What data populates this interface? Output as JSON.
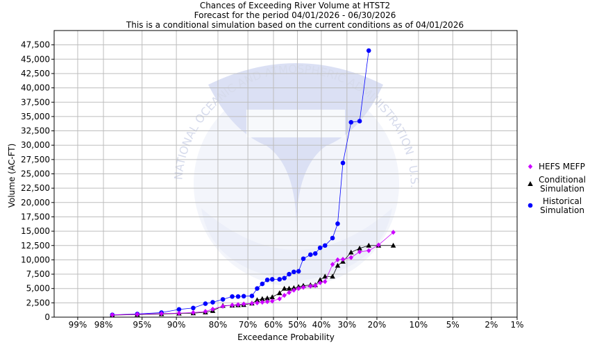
{
  "chart_data": {
    "type": "line",
    "title_lines": [
      "Chances of Exceeding River Volume at HTST2",
      "Forecast for the period 04/01/2026 - 06/30/2026",
      "This is a conditional simulation based on the current conditions as of 04/01/2026"
    ],
    "xlabel": "Exceedance Probability",
    "ylabel": "Volume (AC-FT)",
    "x_axis_scale": "normal-probability",
    "x_range": [
      99.5,
      1
    ],
    "ylim": [
      0,
      50000
    ],
    "x_ticks": [
      {
        "p": 99,
        "label": "99%"
      },
      {
        "p": 98,
        "label": "98%"
      },
      {
        "p": 95,
        "label": "95%"
      },
      {
        "p": 90,
        "label": "90%"
      },
      {
        "p": 80,
        "label": "80%"
      },
      {
        "p": 70,
        "label": "70%"
      },
      {
        "p": 60,
        "label": "60%"
      },
      {
        "p": 50,
        "label": "50%"
      },
      {
        "p": 40,
        "label": "40%"
      },
      {
        "p": 30,
        "label": "30%"
      },
      {
        "p": 20,
        "label": "20%"
      },
      {
        "p": 10,
        "label": "10%"
      },
      {
        "p": 5,
        "label": "5%"
      },
      {
        "p": 2,
        "label": "2%"
      },
      {
        "p": 1,
        "label": "1%"
      }
    ],
    "y_ticks": [
      {
        "v": 0,
        "label": "0"
      },
      {
        "v": 2500,
        "label": "2,500"
      },
      {
        "v": 5000,
        "label": "5,000"
      },
      {
        "v": 7500,
        "label": "7,500"
      },
      {
        "v": 10000,
        "label": "10,000"
      },
      {
        "v": 12500,
        "label": "12,500"
      },
      {
        "v": 15000,
        "label": "15,000"
      },
      {
        "v": 17500,
        "label": "17,500"
      },
      {
        "v": 20000,
        "label": "20,000"
      },
      {
        "v": 22500,
        "label": "22,500"
      },
      {
        "v": 25000,
        "label": "25,000"
      },
      {
        "v": 27500,
        "label": "27,500"
      },
      {
        "v": 30000,
        "label": "30,000"
      },
      {
        "v": 32500,
        "label": "32,500"
      },
      {
        "v": 35000,
        "label": "35,000"
      },
      {
        "v": 37500,
        "label": "37,500"
      },
      {
        "v": 40000,
        "label": "40,000"
      },
      {
        "v": 42500,
        "label": "42,500"
      },
      {
        "v": 45000,
        "label": "45,000"
      },
      {
        "v": 47500,
        "label": "47,500"
      }
    ],
    "grid": true,
    "legend_position": "right",
    "series": [
      {
        "name": "HEFS MEFP",
        "legend_lines": [
          "HEFS MEFP"
        ],
        "color": "#cc00ff",
        "marker": "diamond",
        "points": [
          [
            97.5,
            400
          ],
          [
            95.5,
            500
          ],
          [
            92.5,
            620
          ],
          [
            89.5,
            700
          ],
          [
            86.5,
            800
          ],
          [
            83.5,
            1000
          ],
          [
            81.5,
            1400
          ],
          [
            78.5,
            1900
          ],
          [
            75.5,
            2100
          ],
          [
            73.5,
            2200
          ],
          [
            71.5,
            2300
          ],
          [
            68.5,
            2400
          ],
          [
            66.5,
            2500
          ],
          [
            64.5,
            2600
          ],
          [
            62.5,
            2700
          ],
          [
            60.5,
            2800
          ],
          [
            57.5,
            3200
          ],
          [
            55.5,
            3800
          ],
          [
            53.5,
            4300
          ],
          [
            51.5,
            4700
          ],
          [
            49.5,
            5000
          ],
          [
            47.5,
            5200
          ],
          [
            44.5,
            5400
          ],
          [
            42.5,
            5500
          ],
          [
            40.5,
            6000
          ],
          [
            38.5,
            6200
          ],
          [
            35.5,
            9200
          ],
          [
            33.5,
            10000
          ],
          [
            31.5,
            10100
          ],
          [
            28.5,
            10400
          ],
          [
            25.5,
            11400
          ],
          [
            22.5,
            11600
          ],
          [
            19.5,
            12600
          ],
          [
            15.5,
            14800
          ]
        ]
      },
      {
        "name": "Conditional Simulation",
        "legend_lines": [
          "Conditional",
          "Simulation"
        ],
        "color": "#000000",
        "marker": "triangle",
        "points": [
          [
            97.5,
            350
          ],
          [
            95.5,
            450
          ],
          [
            92.5,
            550
          ],
          [
            89.5,
            650
          ],
          [
            86.5,
            700
          ],
          [
            83.5,
            850
          ],
          [
            81.5,
            1100
          ],
          [
            78.5,
            2000
          ],
          [
            75.5,
            2050
          ],
          [
            73.5,
            2100
          ],
          [
            71.5,
            2150
          ],
          [
            68.5,
            2400
          ],
          [
            66.5,
            3000
          ],
          [
            64.5,
            3200
          ],
          [
            62.5,
            3300
          ],
          [
            60.5,
            3500
          ],
          [
            57.5,
            4200
          ],
          [
            55.5,
            5000
          ],
          [
            53.5,
            5000
          ],
          [
            51.5,
            5100
          ],
          [
            49.5,
            5300
          ],
          [
            47.5,
            5500
          ],
          [
            44.5,
            5600
          ],
          [
            42.5,
            5600
          ],
          [
            40.5,
            6500
          ],
          [
            38.5,
            7100
          ],
          [
            35.5,
            7100
          ],
          [
            33.5,
            9000
          ],
          [
            31.5,
            9700
          ],
          [
            28.5,
            11300
          ],
          [
            25.5,
            12000
          ],
          [
            22.5,
            12500
          ],
          [
            19.5,
            12500
          ],
          [
            15.5,
            12500
          ]
        ]
      },
      {
        "name": "Historical Simulation",
        "legend_lines": [
          "Historical",
          "Simulation"
        ],
        "color": "#0000ff",
        "marker": "circle",
        "points": [
          [
            97.5,
            400
          ],
          [
            95.5,
            550
          ],
          [
            92.5,
            800
          ],
          [
            89.5,
            1350
          ],
          [
            86.5,
            1600
          ],
          [
            83.5,
            2350
          ],
          [
            81.5,
            2600
          ],
          [
            78.5,
            3100
          ],
          [
            75.5,
            3600
          ],
          [
            73.5,
            3600
          ],
          [
            71.5,
            3650
          ],
          [
            68.5,
            3700
          ],
          [
            66.5,
            5000
          ],
          [
            64.5,
            5800
          ],
          [
            62.5,
            6500
          ],
          [
            60.5,
            6600
          ],
          [
            57.5,
            6600
          ],
          [
            55.5,
            6800
          ],
          [
            53.5,
            7500
          ],
          [
            51.5,
            7900
          ],
          [
            49.5,
            8000
          ],
          [
            47.5,
            10200
          ],
          [
            44.5,
            10900
          ],
          [
            42.5,
            11100
          ],
          [
            40.5,
            12100
          ],
          [
            38.5,
            12500
          ],
          [
            35.5,
            13800
          ],
          [
            33.5,
            16300
          ],
          [
            31.5,
            26900
          ],
          [
            28.5,
            34000
          ],
          [
            25.5,
            34200
          ],
          [
            22.5,
            46500
          ]
        ]
      }
    ],
    "watermark_text": "NATIONAL OCEANIC AND ATMOSPHERIC ADMINISTRATION · U.S. DEPARTMENT OF COMMERCE · NOAA"
  }
}
